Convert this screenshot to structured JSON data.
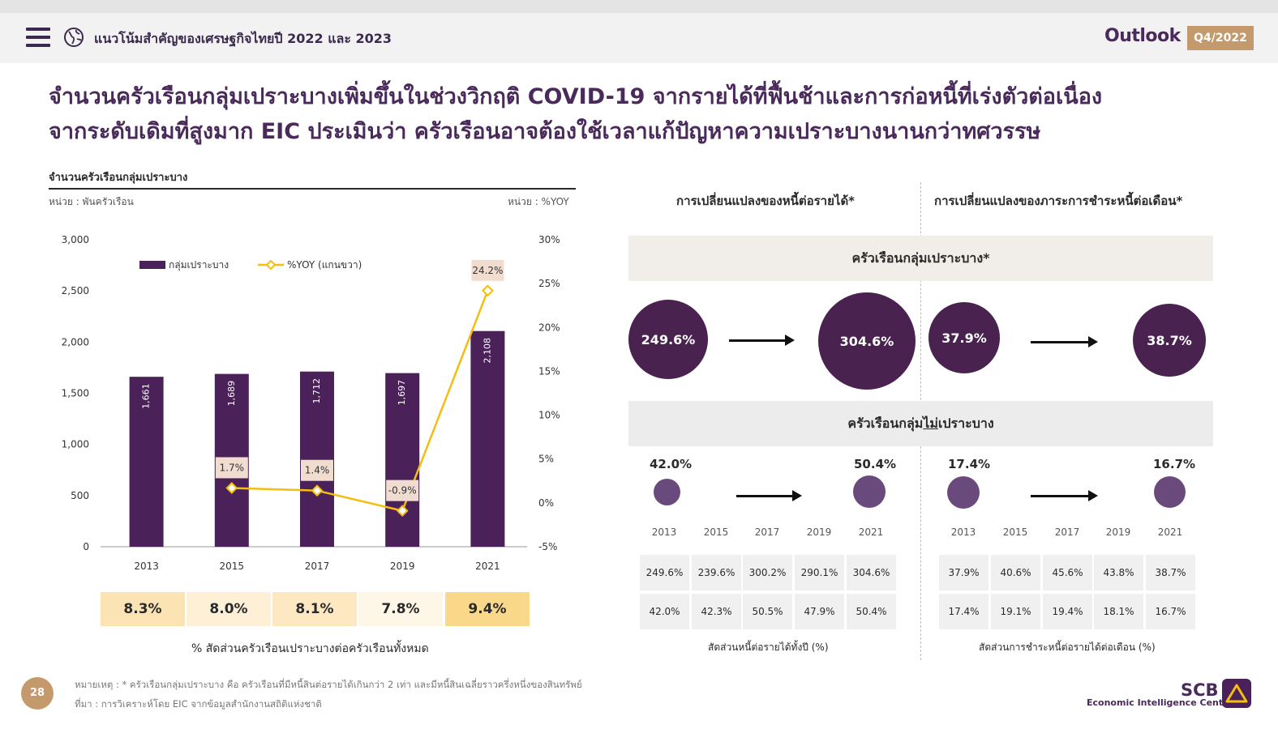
{
  "header": {
    "title": "แนวโน้มสำคัญของเศรษฐกิจไทยปี 2022 และ 2023",
    "brand": "Outlook",
    "quarter": "Q4/2022",
    "menu_icon": "hamburger-menu-icon",
    "globe_icon": "globe-icon"
  },
  "headline": {
    "line1": "จำนวนครัวเรือนกลุ่มเปราะบางเพิ่มขึ้นในช่วงวิกฤติ COVID-19 จากรายได้ที่ฟื้นช้าและการก่อหนี้ที่เร่งตัวต่อเนื่อง",
    "line2": "จากระดับเดิมที่สูงมาก EIC ประเมินว่า ครัวเรือนอาจต้องใช้เวลาแก้ปัญหาความเปราะบางนานกว่าทศวรรษ"
  },
  "left_panel": {
    "subtitle": "จำนวนครัวเรือนกลุ่มเปราะบาง",
    "unit_left": "หน่วย : พันครัวเรือน",
    "unit_right": "หน่วย : %YOY",
    "ratio_caption": "% สัดส่วนครัวเรือนเปราะบางต่อครัวเรือนทั้งหมด",
    "ratios": [
      {
        "value": "8.3%",
        "color": "#fbe3b3"
      },
      {
        "value": "8.0%",
        "color": "#fdf0d6"
      },
      {
        "value": "8.1%",
        "color": "#fde8c2"
      },
      {
        "value": "7.8%",
        "color": "#fef6e6"
      },
      {
        "value": "9.4%",
        "color": "#f9d88a"
      }
    ]
  },
  "chart_data": {
    "type": "bar",
    "categories": [
      "2013",
      "2015",
      "2017",
      "2019",
      "2021"
    ],
    "series": [
      {
        "name": "กลุ่มเปราะบาง",
        "type": "bar",
        "axis": "left",
        "values": [
          1661,
          1689,
          1712,
          1697,
          2108
        ],
        "labels": [
          "1,661",
          "1,689",
          "1,712",
          "1,697",
          "2,108"
        ],
        "color": "#4a2259"
      },
      {
        "name": "%YOY (แกนขวา)",
        "type": "line",
        "axis": "right",
        "values": [
          null,
          1.7,
          1.4,
          -0.9,
          24.2
        ],
        "labels": [
          "",
          "1.7%",
          "1.4%",
          "-0.9%",
          "24.2%"
        ],
        "color": "#f5bd0f"
      }
    ],
    "ylim_left": [
      0,
      3000
    ],
    "yticks_left": [
      "0",
      "500",
      "1,000",
      "1,500",
      "2,000",
      "2,500",
      "3,000"
    ],
    "ylim_right": [
      -5,
      30
    ],
    "yticks_right": [
      "-5%",
      "0%",
      "5%",
      "10%",
      "15%",
      "20%",
      "25%",
      "30%"
    ],
    "legend_position": "top-left",
    "grid": false
  },
  "right_panel": {
    "col_left_title": "การเปลี่ยนแปลงของหนี้ต่อรายได้*",
    "col_right_title": "การเปลี่ยนแปลงของภาระการชำระหนี้ต่อเดือน*",
    "vulnerable_label": "ครัวเรือนกลุ่มเปราะบาง*",
    "non_vulnerable_label_pre": "ครัวเรือนกลุ่ม",
    "non_vulnerable_label_ul": "ไม่",
    "non_vulnerable_label_post": "เปราะบาง",
    "vulnerable_values": {
      "debt_income_2013": "249.6%",
      "debt_income_2021": "304.6%",
      "dsr_2013": "37.9%",
      "dsr_2021": "38.7%"
    },
    "non_vulnerable_values": {
      "debt_income_2013": "42.0%",
      "debt_income_2021": "50.4%",
      "dsr_2013": "17.4%",
      "dsr_2021": "16.7%"
    },
    "years": [
      "2013",
      "2015",
      "2017",
      "2019",
      "2021"
    ],
    "debt_income_table": {
      "vulnerable": [
        "249.6%",
        "239.6%",
        "300.2%",
        "290.1%",
        "304.6%"
      ],
      "non_vulnerable": [
        "42.0%",
        "42.3%",
        "50.5%",
        "47.9%",
        "50.4%"
      ]
    },
    "dsr_table": {
      "vulnerable": [
        "37.9%",
        "40.6%",
        "45.6%",
        "43.8%",
        "38.7%"
      ],
      "non_vulnerable": [
        "17.4%",
        "19.1%",
        "19.4%",
        "18.1%",
        "16.7%"
      ]
    },
    "debt_income_caption": "สัดส่วนหนี้ต่อรายได้ทั้งปี (%)",
    "dsr_caption": "สัดส่วนการชำระหนี้ต่อรายได้ต่อเดือน (%)"
  },
  "footer": {
    "page_number": "28",
    "note": "หมายเหตุ : * ครัวเรือนกลุ่มเปราะบาง คือ ครัวเรือนที่มีหนี้สินต่อรายได้เกินกว่า 2 เท่า และมีหนี้สินเฉลี่ยราวครึ่งหนึ่งของสินทรัพย์",
    "source": "ที่มา : การวิเคราะห์โดย EIC จากข้อมูลสำนักงานสถิติแห่งชาติ",
    "brand": "SCB",
    "brand_sub": "Economic Intelligence Center",
    "logo_icon": "scb-logo-icon"
  }
}
